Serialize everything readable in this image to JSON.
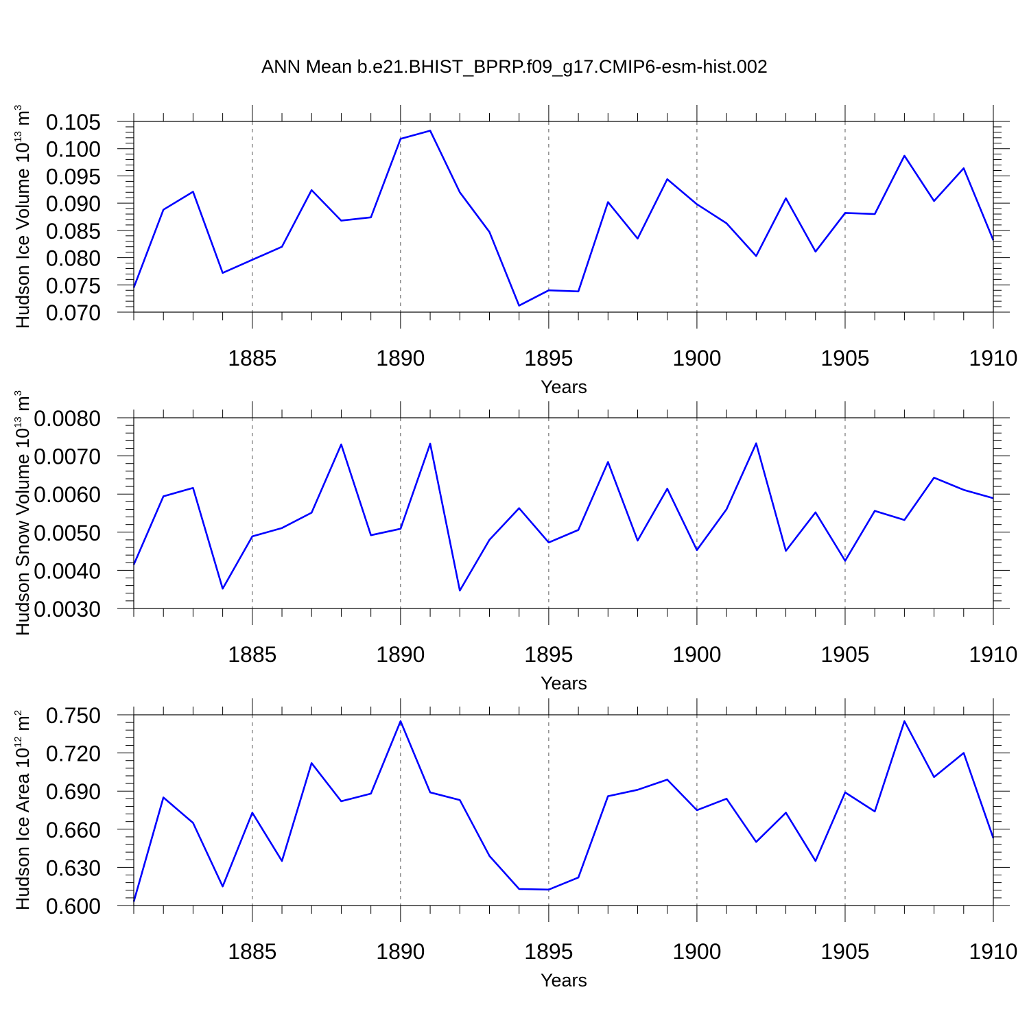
{
  "figure": {
    "title": "ANN Mean b.e21.BHIST_BPRP.f09_g17.CMIP6-esm-hist.002"
  },
  "colors": {
    "line": "#0000ff",
    "axis": "#000000",
    "grid": "#555555",
    "background": "#ffffff"
  },
  "chart_data": [
    {
      "type": "line",
      "id": "ice-volume",
      "title": "",
      "xlabel": "Years",
      "ylabel": "Hudson Ice Volume 10",
      "ylabel_exp": "13",
      "ylabel_unit": "m",
      "ylabel_unit_exp": "3",
      "xlim": [
        1881,
        1910
      ],
      "ylim": [
        0.07,
        0.105
      ],
      "xticks": [
        1885,
        1890,
        1895,
        1900,
        1905,
        1910
      ],
      "xtick_labels": [
        "1885",
        "1890",
        "1895",
        "1900",
        "1905",
        "1910"
      ],
      "yticks": [
        0.07,
        0.075,
        0.08,
        0.085,
        0.09,
        0.095,
        0.1,
        0.105
      ],
      "ytick_labels": [
        "0.070",
        "0.075",
        "0.080",
        "0.085",
        "0.090",
        "0.095",
        "0.100",
        "0.105"
      ],
      "grid": "vertical dashed at major x ticks",
      "x": [
        1881,
        1882,
        1883,
        1884,
        1885,
        1886,
        1887,
        1888,
        1889,
        1890,
        1891,
        1892,
        1893,
        1894,
        1895,
        1896,
        1897,
        1898,
        1899,
        1900,
        1901,
        1902,
        1903,
        1904,
        1905,
        1906,
        1907,
        1908,
        1909,
        1910
      ],
      "series": [
        {
          "name": "Hudson Ice Volume",
          "values": [
            0.0745,
            0.0888,
            0.0921,
            0.0772,
            0.0796,
            0.082,
            0.0924,
            0.0868,
            0.0874,
            0.1018,
            0.1033,
            0.092,
            0.0847,
            0.0712,
            0.074,
            0.0738,
            0.0902,
            0.0835,
            0.0944,
            0.0898,
            0.0863,
            0.0803,
            0.0909,
            0.0811,
            0.0882,
            0.088,
            0.0987,
            0.0904,
            0.0964,
            0.0832
          ]
        }
      ]
    },
    {
      "type": "line",
      "id": "snow-volume",
      "title": "",
      "xlabel": "Years",
      "ylabel": "Hudson Snow Volume 10",
      "ylabel_exp": "13",
      "ylabel_unit": "m",
      "ylabel_unit_exp": "3",
      "xlim": [
        1881,
        1910
      ],
      "ylim": [
        0.003,
        0.008
      ],
      "xticks": [
        1885,
        1890,
        1895,
        1900,
        1905,
        1910
      ],
      "xtick_labels": [
        "1885",
        "1890",
        "1895",
        "1900",
        "1905",
        "1910"
      ],
      "yticks": [
        0.003,
        0.004,
        0.005,
        0.006,
        0.007,
        0.008
      ],
      "ytick_labels": [
        "0.0030",
        "0.0040",
        "0.0050",
        "0.0060",
        "0.0070",
        "0.0080"
      ],
      "grid": "vertical dashed at major x ticks",
      "x": [
        1881,
        1882,
        1883,
        1884,
        1885,
        1886,
        1887,
        1888,
        1889,
        1890,
        1891,
        1892,
        1893,
        1894,
        1895,
        1896,
        1897,
        1898,
        1899,
        1900,
        1901,
        1902,
        1903,
        1904,
        1905,
        1906,
        1907,
        1908,
        1909,
        1910
      ],
      "series": [
        {
          "name": "Hudson Snow Volume",
          "values": [
            0.00415,
            0.00594,
            0.00616,
            0.00352,
            0.00489,
            0.00511,
            0.00551,
            0.0073,
            0.00492,
            0.00509,
            0.00732,
            0.00347,
            0.0048,
            0.00563,
            0.00473,
            0.00506,
            0.00684,
            0.00478,
            0.00614,
            0.00453,
            0.0056,
            0.00733,
            0.00451,
            0.00552,
            0.00425,
            0.00556,
            0.00532,
            0.00643,
            0.00611,
            0.00589
          ]
        }
      ]
    },
    {
      "type": "line",
      "id": "ice-area",
      "title": "",
      "xlabel": "Years",
      "ylabel": "Hudson Ice Area 10",
      "ylabel_exp": "12",
      "ylabel_unit": "m",
      "ylabel_unit_exp": "2",
      "xlim": [
        1881,
        1910
      ],
      "ylim": [
        0.6,
        0.75
      ],
      "xticks": [
        1885,
        1890,
        1895,
        1900,
        1905,
        1910
      ],
      "xtick_labels": [
        "1885",
        "1890",
        "1895",
        "1900",
        "1905",
        "1910"
      ],
      "yticks": [
        0.6,
        0.63,
        0.66,
        0.69,
        0.72,
        0.75
      ],
      "ytick_labels": [
        "0.600",
        "0.630",
        "0.660",
        "0.690",
        "0.720",
        "0.750"
      ],
      "grid": "vertical dashed at major x ticks",
      "x": [
        1881,
        1882,
        1883,
        1884,
        1885,
        1886,
        1887,
        1888,
        1889,
        1890,
        1891,
        1892,
        1893,
        1894,
        1895,
        1896,
        1897,
        1898,
        1899,
        1900,
        1901,
        1902,
        1903,
        1904,
        1905,
        1906,
        1907,
        1908,
        1909,
        1910
      ],
      "series": [
        {
          "name": "Hudson Ice Area",
          "values": [
            0.603,
            0.685,
            0.665,
            0.615,
            0.673,
            0.635,
            0.712,
            0.682,
            0.688,
            0.745,
            0.689,
            0.683,
            0.639,
            0.613,
            0.6125,
            0.622,
            0.686,
            0.691,
            0.699,
            0.675,
            0.684,
            0.65,
            0.673,
            0.635,
            0.689,
            0.674,
            0.745,
            0.701,
            0.72,
            0.653
          ]
        }
      ]
    }
  ]
}
